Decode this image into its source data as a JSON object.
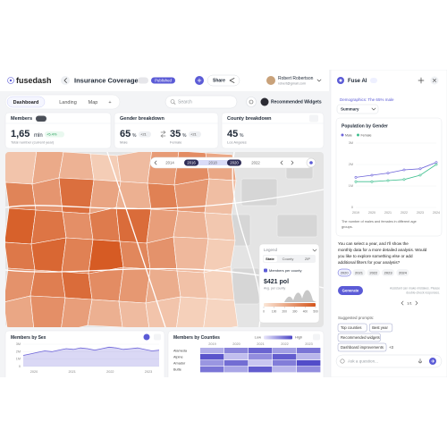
{
  "header": {
    "logo": "fusedash",
    "title": "Insurance Coverage",
    "status": "Published",
    "share": "Share",
    "user_name": "Robert Robertson",
    "user_email": "robert@gmail.com"
  },
  "tabs": [
    "Dashboard",
    "Landing",
    "Map",
    "+"
  ],
  "search_placeholder": "Search",
  "recommended": "Recommended Widgets",
  "kpis": {
    "members": {
      "title": "Members",
      "value": "1,65",
      "unit": "mln",
      "change": "+5.4%",
      "caption": "Total number (current year)"
    },
    "gender": {
      "title": "Gender breakdown",
      "male": {
        "value": "65",
        "unit": "%",
        "change": "+21",
        "label": "Male"
      },
      "female": {
        "value": "35",
        "unit": "%",
        "change": "+21",
        "label": "Female"
      }
    },
    "county": {
      "title": "County breakdown",
      "value": "45",
      "unit": "%",
      "label": "Los Angeles"
    }
  },
  "map": {
    "timeline": [
      "2014",
      "2016",
      "2018",
      "2020",
      "2022"
    ],
    "color_scale": [
      "#fbe7d8",
      "#d4551c"
    ],
    "regions": [
      120,
      210,
      180,
      90,
      150,
      260,
      310,
      220,
      340,
      280,
      410,
      230,
      190,
      350,
      270,
      140,
      460,
      390,
      300,
      370,
      420,
      250,
      180,
      110,
      380,
      440,
      350,
      480,
      330,
      290,
      160,
      90,
      290,
      360,
      420,
      310,
      270,
      200,
      130,
      70,
      220,
      300,
      250,
      190,
      150,
      120,
      80,
      60
    ],
    "legend": {
      "title": "Legend",
      "tabs": [
        "State",
        "County",
        "ZIP"
      ],
      "metric": "Members per county",
      "value": "$421 pol",
      "caption": "Avg. per county",
      "scale": [
        0,
        100,
        200,
        300,
        400,
        500
      ]
    }
  },
  "members_by_sex": {
    "type": "area",
    "title": "Members by Sex",
    "color": "#6c63d9",
    "x_labels": [
      "2020",
      "2021",
      "2022",
      "2023"
    ],
    "values": [
      1500000,
      1700000,
      1900000,
      2100000,
      2000000,
      2200000,
      2400000,
      2300000,
      2500000,
      2400000,
      2200000,
      2400000,
      2600000,
      2500000,
      2300000,
      2400000,
      2500000,
      2300000,
      2100000,
      2200000
    ],
    "ylim": [
      0,
      3000000
    ],
    "yticks": [
      0,
      {
        "value": 1000000,
        "label": "1M"
      },
      {
        "value": 2000000,
        "label": "2M"
      },
      {
        "value": 3000000,
        "label": "3M"
      }
    ]
  },
  "members_by_counties": {
    "type": "heatmap",
    "title": "Members by Counties",
    "legend_low": "Low",
    "legend_high": "High",
    "color_scale": [
      "#e9e7fb",
      "#4a44c6"
    ],
    "range": [
      0,
      100
    ],
    "columns": [
      "2019",
      "2020",
      "2021",
      "2022",
      "2023"
    ],
    "rows": [
      "Alameda",
      "Alpine",
      "Amador",
      "Butte"
    ],
    "values": [
      [
        35,
        60,
        80,
        45,
        70
      ],
      [
        90,
        25,
        55,
        85,
        30
      ],
      [
        50,
        75,
        20,
        65,
        95
      ],
      [
        70,
        40,
        85,
        30,
        55
      ]
    ]
  },
  "assistant": {
    "title": "Fuse AI",
    "context": "Demographics: The 65% male",
    "mode": "Summary",
    "chart": {
      "type": "line",
      "title": "Population by Gender",
      "categories": [
        "2019",
        "2020",
        "2021",
        "2022",
        "2023",
        "2024"
      ],
      "series": [
        {
          "name": "Male",
          "color": "#6c63d9",
          "values": [
            1400000,
            1500000,
            1600000,
            1750000,
            1800000,
            2100000
          ]
        },
        {
          "name": "Female",
          "color": "#3fbf8f",
          "values": [
            1200000,
            1200000,
            1250000,
            1300000,
            1500000,
            2000000
          ]
        }
      ],
      "ylim": [
        0,
        3000000
      ],
      "yticks": [
        0,
        {
          "value": 1000000,
          "label": "1M"
        },
        {
          "value": 2000000,
          "label": "2M"
        },
        {
          "value": 3000000,
          "label": "3M"
        }
      ],
      "grid": true,
      "caption": [
        "The number of males and females in different age",
        "groups."
      ]
    },
    "message": [
      "You can select a year, and I'll show the",
      "monthly data for a more detailed analysis. Would",
      "you like to explore something else or add",
      "additional filters for your analysis?"
    ],
    "years": [
      "2020",
      "2021",
      "2022",
      "2023",
      "2024"
    ],
    "generate": "Generate",
    "disclaimer": [
      "Assistant can make mistakes. Please",
      "double-check responses."
    ],
    "pager": "1/1",
    "suggested_title": "Suggested prompts:",
    "suggested": [
      [
        "Top counties",
        "Best year"
      ],
      [
        "Recommended widgets"
      ],
      [
        "Dashboard improvements",
        "+3"
      ]
    ],
    "input_placeholder": "Ask a question..."
  }
}
